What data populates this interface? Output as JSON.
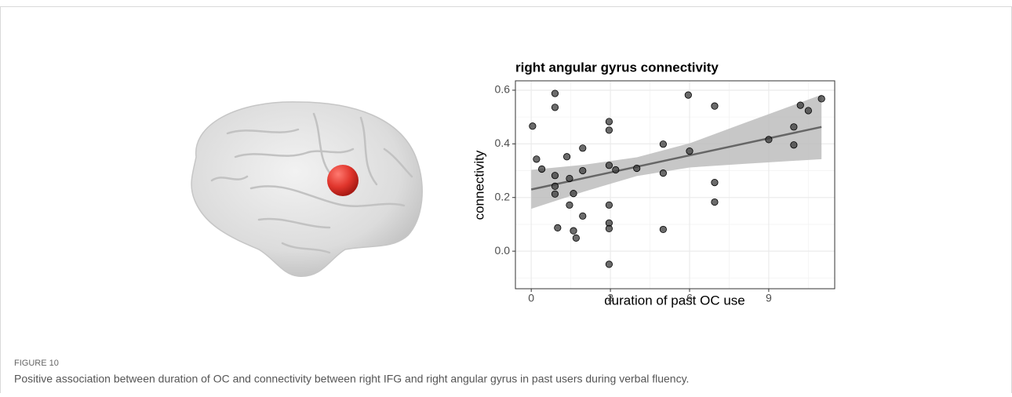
{
  "chart_data": {
    "type": "scatter",
    "title": "right angular gyrus connectivity",
    "x_label": "duration of past OC use",
    "y_label": "connectivity",
    "x": [
      0.05,
      0.2,
      0.4,
      0.9,
      0.9,
      0.9,
      0.9,
      0.9,
      1,
      1.35,
      1.45,
      1.45,
      1.6,
      1.6,
      1.7,
      1.95,
      1.95,
      1.95,
      2.95,
      2.95,
      2.95,
      2.95,
      2.95,
      2.95,
      2.95,
      3.2,
      4,
      5,
      5,
      5,
      5.95,
      6,
      6.95,
      6.95,
      6.95,
      9,
      9.95,
      9.95,
      10.2,
      10.5,
      11
    ],
    "values": [
      0.466,
      0.343,
      0.306,
      0.588,
      0.536,
      0.282,
      0.242,
      0.213,
      0.087,
      0.352,
      0.271,
      0.172,
      0.215,
      0.076,
      0.049,
      0.384,
      0.3,
      0.131,
      0.483,
      0.451,
      0.32,
      0.172,
      0.105,
      0.084,
      -0.049,
      0.303,
      0.309,
      0.399,
      0.291,
      0.081,
      0.582,
      0.373,
      0.541,
      0.256,
      0.183,
      0.416,
      0.463,
      0.396,
      0.544,
      0.524,
      0.568
    ],
    "color": "#3a3a3a",
    "fit": {
      "x": [
        0,
        11
      ],
      "y": [
        0.23,
        0.463
      ],
      "color": "#666666"
    },
    "band": {
      "x": [
        0,
        2,
        4,
        6,
        8,
        11
      ],
      "lower": [
        0.158,
        0.222,
        0.28,
        0.312,
        0.325,
        0.343
      ],
      "upper": [
        0.303,
        0.322,
        0.35,
        0.402,
        0.475,
        0.583
      ],
      "color": "#bdbdbd"
    },
    "xlim": [
      -0.6,
      11.5
    ],
    "ylim": [
      -0.14,
      0.635
    ],
    "xticks": [
      0,
      3,
      6,
      9
    ],
    "yticks": [
      {
        "value": 0,
        "label": "0.0"
      },
      0.2,
      0.4,
      0.6
    ],
    "xminor": [
      1.5,
      4.5,
      7.5,
      10.5
    ],
    "yminor": [
      -0.1,
      0.1,
      0.3,
      0.5
    ],
    "grid": true
  },
  "figure": {
    "label": "FIGURE 10",
    "caption": "Positive association between duration of OC and connectivity between right IFG and right angular gyrus in past users during verbal fluency."
  }
}
